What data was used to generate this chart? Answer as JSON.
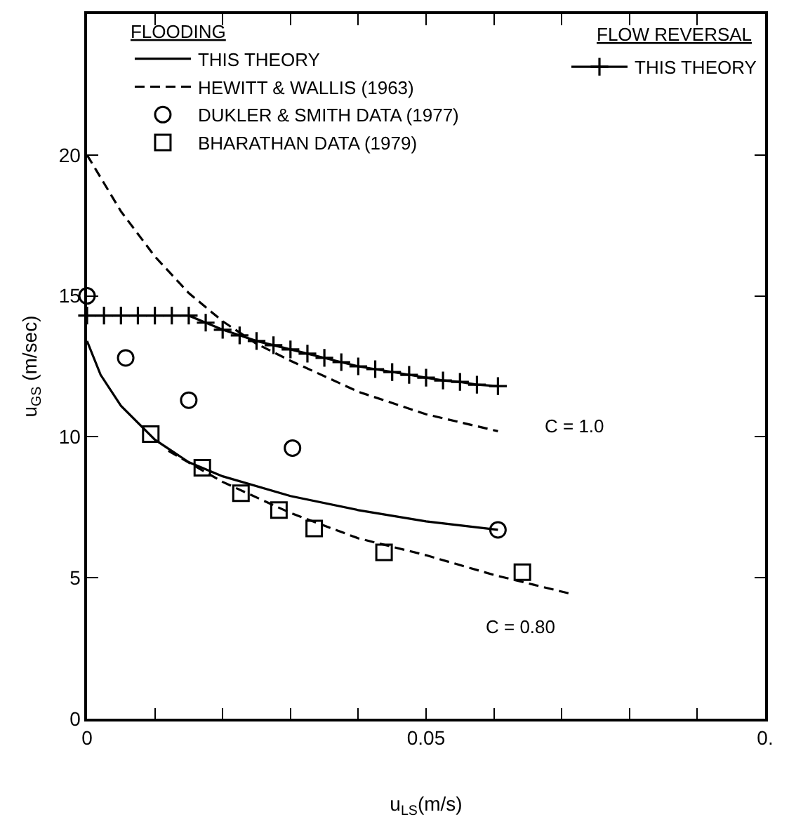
{
  "chart_data": {
    "type": "line",
    "xlabel": "u$_{LS}$(m/s)",
    "ylabel": "u$_{GS}$ (m/sec)",
    "legend_title": "FLOODING",
    "xlim": [
      0,
      0.1
    ],
    "ylim": [
      0,
      25
    ],
    "xticks": [
      0,
      {
        "value": 0.01,
        "label": null
      },
      {
        "value": 0.02,
        "label": null
      },
      {
        "value": 0.03,
        "label": null
      },
      {
        "value": 0.04,
        "label": null
      },
      0.05,
      {
        "value": 0.06,
        "label": null
      },
      {
        "value": 0.07,
        "label": null
      },
      {
        "value": 0.08,
        "label": null
      },
      {
        "value": 0.09,
        "label": null
      },
      {
        "value": 0.1,
        "label": "0."
      }
    ],
    "yticks": [
      0,
      5,
      10,
      15,
      20
    ],
    "legend": "top",
    "series": [
      {
        "name": "THIS THEORY",
        "line_style": "solid",
        "marker": "none",
        "color": "#000000",
        "x": [
          0,
          0.002,
          0.005,
          0.01,
          0.015,
          0.02,
          0.03,
          0.04,
          0.05,
          0.0606
        ],
        "values": [
          13.4,
          12.2,
          11.1,
          9.9,
          9.1,
          8.6,
          7.9,
          7.4,
          7.0,
          6.7
        ]
      },
      {
        "name": "HEWITT & WALLIS (1963)",
        "line_style": "dashed",
        "marker": "none",
        "color": "#000000",
        "x": [
          0,
          0.005,
          0.01,
          0.015,
          0.02,
          0.025,
          0.03,
          0.04,
          0.05,
          0.0606
        ],
        "values": [
          20,
          18.0,
          16.4,
          15.1,
          14.1,
          13.3,
          12.7,
          11.6,
          10.8,
          10.2
        ]
      },
      {
        "name": "DUKLER & SMITH DATA (1977)",
        "type": "scatter",
        "marker": "circle",
        "color": "#000000",
        "x": [
          0,
          0.0057,
          0.015,
          0.0303,
          0.0606
        ],
        "values": [
          15.0,
          12.8,
          11.3,
          9.6,
          6.7
        ]
      },
      {
        "name": "BHARATHAN DATA (1979)",
        "type": "scatter",
        "marker": "square",
        "color": "#000000",
        "x": [
          0.0094,
          0.017,
          0.0227,
          0.0283,
          0.0335,
          0.0438,
          0.0642
        ],
        "values": [
          10.1,
          8.9,
          8.0,
          7.4,
          6.75,
          5.9,
          5.2
        ]
      },
      {
        "line_style": "dashed",
        "marker": "none",
        "color": "#000000",
        "x": [
          0.012,
          0.02,
          0.03,
          0.04,
          0.05,
          0.06,
          0.071
        ],
        "values": [
          9.5,
          8.4,
          7.3,
          6.4,
          5.8,
          5.1,
          4.45
        ]
      },
      {
        "name": "THIS THEORY",
        "line_style": "solid",
        "marker": "cross",
        "color": "#000000",
        "x": [
          0,
          0.0025,
          0.005,
          0.0075,
          0.01,
          0.0125,
          0.015,
          0.0175,
          0.02,
          0.0225,
          0.025,
          0.0275,
          0.03,
          0.0325,
          0.035,
          0.0375,
          0.04,
          0.0425,
          0.045,
          0.0475,
          0.05,
          0.0525,
          0.055,
          0.0575,
          0.0606
        ],
        "values": [
          14.3,
          14.3,
          14.3,
          14.3,
          14.3,
          14.3,
          14.3,
          14.05,
          13.8,
          13.6,
          13.4,
          13.25,
          13.1,
          12.95,
          12.8,
          12.65,
          12.5,
          12.4,
          12.3,
          12.2,
          12.1,
          12.0,
          11.95,
          11.85,
          11.8
        ]
      }
    ],
    "annotations": [
      "FLOW REVERSAL",
      "C = 1.0",
      "C = 0.80"
    ]
  }
}
